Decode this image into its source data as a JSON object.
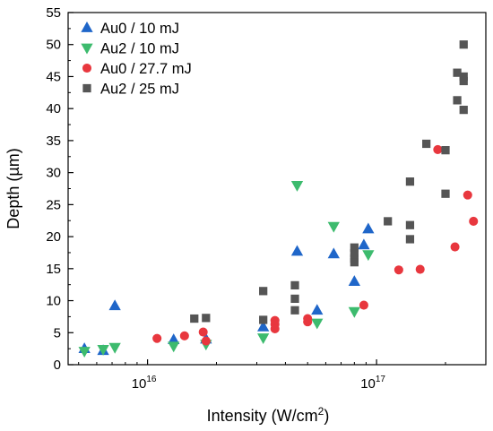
{
  "chart_data": {
    "type": "scatter",
    "title": "",
    "xlabel": "Intensity (W/cm²)",
    "xlabel_base": "Intensity (W/cm",
    "xlabel_sup": "2",
    "xlabel_end": ")",
    "ylabel": "Depth (µm)",
    "xscale": "log",
    "xlim": [
      4500000000000000.0,
      3e+17
    ],
    "ylim": [
      0,
      55
    ],
    "yticks": [
      0,
      5,
      10,
      15,
      20,
      25,
      30,
      35,
      40,
      45,
      50,
      55
    ],
    "xticks": [
      {
        "value": 1e+16,
        "base": "10",
        "exp": "16"
      },
      {
        "value": 1e+17,
        "base": "10",
        "exp": "17"
      }
    ],
    "grid": false,
    "legend_position": "top-left",
    "series": [
      {
        "name": "Au0 / 10 mJ",
        "marker": "triangle-up",
        "color": "#1f66c9",
        "points": [
          [
            5300000000000000.0,
            2.5
          ],
          [
            6400000000000000.0,
            2.2
          ],
          [
            7200000000000000.0,
            9.2
          ],
          [
            1.3e+16,
            3.9
          ],
          [
            1.8e+16,
            4.0
          ],
          [
            3.2e+16,
            5.9
          ],
          [
            4.5e+16,
            17.7
          ],
          [
            5.5e+16,
            8.5
          ],
          [
            6.5e+16,
            17.3
          ],
          [
            8e+16,
            13.0
          ],
          [
            8.8e+16,
            18.7
          ],
          [
            9.2e+16,
            21.2
          ]
        ]
      },
      {
        "name": "Au2 / 10 mJ",
        "marker": "triangle-down",
        "color": "#3dbb6e",
        "points": [
          [
            5300000000000000.0,
            2.1
          ],
          [
            6400000000000000.0,
            2.4
          ],
          [
            7200000000000000.0,
            2.7
          ],
          [
            1.3e+16,
            2.9
          ],
          [
            1.8e+16,
            3.2
          ],
          [
            3.2e+16,
            4.2
          ],
          [
            4.5e+16,
            28.0
          ],
          [
            5.5e+16,
            6.5
          ],
          [
            6.5e+16,
            21.6
          ],
          [
            8e+16,
            8.3
          ],
          [
            9.2e+16,
            17.2
          ]
        ]
      },
      {
        "name": "Au0 / 27.7 mJ",
        "marker": "circle",
        "color": "#e8373e",
        "points": [
          [
            1.1e+16,
            4.1
          ],
          [
            1.45e+16,
            4.5
          ],
          [
            1.75e+16,
            5.1
          ],
          [
            1.8e+16,
            3.7
          ],
          [
            3.6e+16,
            5.6
          ],
          [
            3.6e+16,
            6.3
          ],
          [
            3.6e+16,
            6.9
          ],
          [
            5e+16,
            6.7
          ],
          [
            5e+16,
            7.2
          ],
          [
            8.8e+16,
            9.3
          ],
          [
            1.25e+17,
            14.8
          ],
          [
            1.55e+17,
            14.9
          ],
          [
            1.85e+17,
            33.6
          ],
          [
            2.2e+17,
            18.4
          ],
          [
            2.5e+17,
            26.5
          ],
          [
            2.65e+17,
            22.4
          ]
        ]
      },
      {
        "name": "Au2 / 25 mJ",
        "marker": "square",
        "color": "#555555",
        "points": [
          [
            1.6e+16,
            7.2
          ],
          [
            1.8e+16,
            7.3
          ],
          [
            3.2e+16,
            11.5
          ],
          [
            3.2e+16,
            7.0
          ],
          [
            4.4e+16,
            12.4
          ],
          [
            4.4e+16,
            10.3
          ],
          [
            4.4e+16,
            8.5
          ],
          [
            8e+16,
            18.3
          ],
          [
            8e+16,
            17.4
          ],
          [
            8e+16,
            16.6
          ],
          [
            8e+16,
            16.0
          ],
          [
            1.12e+17,
            22.4
          ],
          [
            1.4e+17,
            28.6
          ],
          [
            1.4e+17,
            21.8
          ],
          [
            1.4e+17,
            19.6
          ],
          [
            1.65e+17,
            34.5
          ],
          [
            2e+17,
            33.5
          ],
          [
            2e+17,
            26.7
          ],
          [
            2.25e+17,
            45.6
          ],
          [
            2.25e+17,
            41.3
          ],
          [
            2.4e+17,
            50.0
          ],
          [
            2.4e+17,
            45.0
          ],
          [
            2.4e+17,
            44.3
          ],
          [
            2.4e+17,
            39.8
          ]
        ]
      }
    ]
  }
}
